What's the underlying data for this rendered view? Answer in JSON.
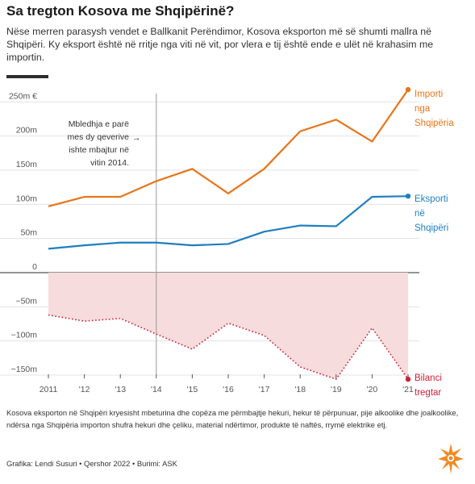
{
  "header": {
    "title": "Sa tregton Kosova me Shqipërinë?",
    "subtitle": "Nëse merren parasysh vendet e Ballkanit Perëndimor, Kosova eksporton më së shumti mallra në Shqipëri. Ky eksport është në rritje nga viti në vit, por vlera e tij është ende e ulët në krahasim me importin."
  },
  "chart_data": {
    "type": "line",
    "x": [
      "2011",
      "'12",
      "'13",
      "'14",
      "'15",
      "'16",
      "'17",
      "'18",
      "'19",
      "'20",
      "'21"
    ],
    "ylim": [
      -160,
      275
    ],
    "yticks": [
      "250m €",
      "200m",
      "150m",
      "100m",
      "50m",
      "0",
      "−50m",
      "−100m",
      "−150m"
    ],
    "ytick_values": [
      250,
      200,
      150,
      100,
      50,
      0,
      -50,
      -100,
      -150
    ],
    "grid": true,
    "series": [
      {
        "name_lines": [
          "Importi",
          "nga",
          "Shqipëria"
        ],
        "color": "#e8751a",
        "style": "solid",
        "values": [
          97,
          111,
          111,
          134,
          152,
          116,
          152,
          207,
          224,
          192,
          268
        ]
      },
      {
        "name_lines": [
          "Eksporti",
          "në",
          "Shqipëri"
        ],
        "color": "#1f7fbf",
        "style": "solid",
        "values": [
          35,
          40,
          44,
          44,
          40,
          42,
          60,
          69,
          68,
          111,
          112
        ]
      },
      {
        "name_lines": [
          "Bilanci",
          "tregtar"
        ],
        "color": "#d11f3a",
        "style": "dotted",
        "fill": "#f6dcdc",
        "values": [
          -62,
          -71,
          -67,
          -90,
          -112,
          -74,
          -92,
          -138,
          -156,
          -81,
          -156
        ]
      }
    ],
    "annotation": {
      "x": "'14",
      "lines": [
        "Mbledhja e parë",
        "mes dy qeverive",
        "ishte mbajtur në",
        "vitin 2014."
      ],
      "arrow": "→"
    }
  },
  "footer": {
    "note": "Kosova eksporton në Shqipëri kryesisht mbeturina dhe copëza me përmbajtje hekuri, hekur të përpunuar, pije alkoolike dhe joalkoolike, ndërsa nga Shqipëria importon shufra hekuri dhe çeliku, material ndërtimor, produkte të naftës, rrymë elektrike etj.",
    "credit": "Grafika: Lendi Susuri • Qershor 2022 • Burimi: ASK"
  },
  "colors": {
    "accent": "#e8751a",
    "logo": "#f08a24"
  },
  "logo": {
    "icon": "rfe-rl-burst-icon"
  }
}
